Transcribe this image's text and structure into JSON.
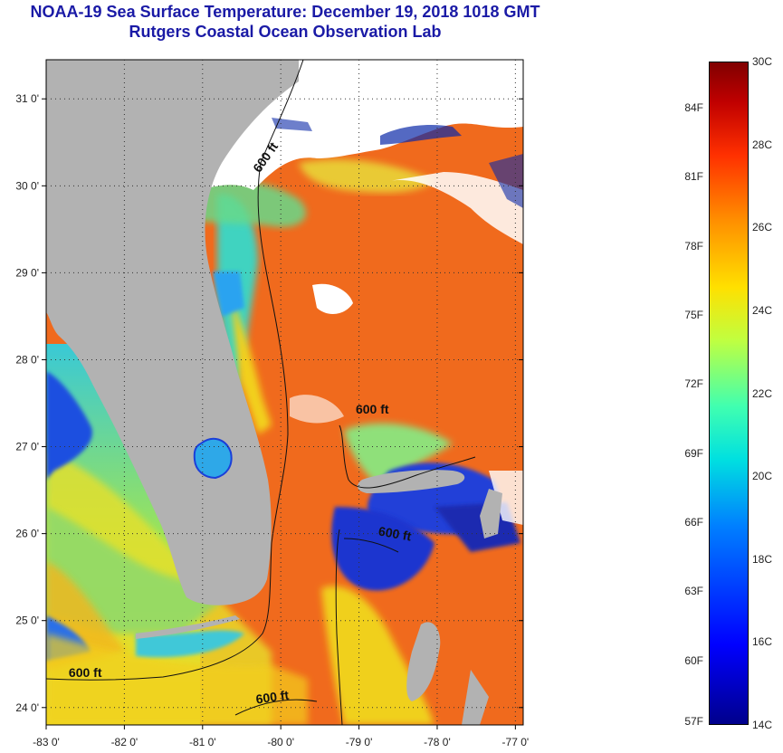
{
  "title": {
    "line1": "NOAA-19 Sea Surface Temperature:  December 19, 2018 1018 GMT",
    "line2": "Rutgers Coastal Ocean Observation Lab"
  },
  "map": {
    "lon_range": [
      -83.0,
      -76.9
    ],
    "lat_range": [
      23.8,
      31.45
    ],
    "lon_ticks": [
      {
        "value": -83,
        "label": "-83 0'"
      },
      {
        "value": -82,
        "label": "-82 0'"
      },
      {
        "value": -81,
        "label": "-81 0'"
      },
      {
        "value": -80,
        "label": "-80 0'"
      },
      {
        "value": -79,
        "label": "-79 0'"
      },
      {
        "value": -78,
        "label": "-78 0'"
      },
      {
        "value": -77,
        "label": "-77 0'"
      }
    ],
    "lat_ticks": [
      {
        "value": 24,
        "label": "24 0'"
      },
      {
        "value": 25,
        "label": "25 0'"
      },
      {
        "value": 26,
        "label": "26 0'"
      },
      {
        "value": 27,
        "label": "27 0'"
      },
      {
        "value": 28,
        "label": "28 0'"
      },
      {
        "value": 29,
        "label": "29 0'"
      },
      {
        "value": 30,
        "label": "30 0'"
      },
      {
        "value": 31,
        "label": "31 0'"
      }
    ],
    "contour_labels": [
      {
        "text": "600 ft",
        "lon": -80.15,
        "lat": 30.3,
        "rotate": -55
      },
      {
        "text": "600 ft",
        "lon": -78.83,
        "lat": 27.38,
        "rotate": 0
      },
      {
        "text": "600 ft",
        "lon": -78.55,
        "lat": 25.95,
        "rotate": 10
      },
      {
        "text": "600 ft",
        "lon": -82.5,
        "lat": 24.35,
        "rotate": 0
      },
      {
        "text": "600 ft",
        "lon": -80.1,
        "lat": 24.07,
        "rotate": -8
      }
    ],
    "colors": {
      "land": "#b2b2b2",
      "cloud": "#ffffff",
      "warm": "#f25a1a",
      "cold": "#1a3fd9"
    }
  },
  "colorbar": {
    "range_c": [
      14,
      30
    ],
    "celsius_labels": [
      "30C",
      "28C",
      "26C",
      "24C",
      "22C",
      "20C",
      "18C",
      "16C",
      "14C"
    ],
    "celsius_values": [
      30,
      28,
      26,
      24,
      22,
      20,
      18,
      16,
      14
    ],
    "fahrenheit_labels": [
      "84F",
      "81F",
      "78F",
      "75F",
      "72F",
      "69F",
      "66F",
      "63F",
      "60F",
      "57F"
    ],
    "fahrenheit_values": [
      84,
      81,
      78,
      75,
      72,
      69,
      66,
      63,
      60,
      57
    ]
  }
}
